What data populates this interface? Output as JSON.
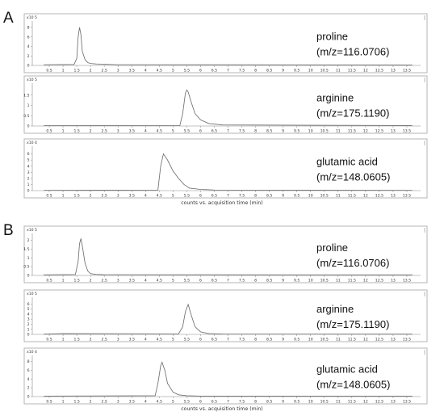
{
  "chart_data": [
    {
      "panel": "A",
      "type": "line",
      "xlabel": "counts vs. acquisition time (min)",
      "xlim": [
        0,
        14
      ],
      "x_ticks": [
        "0.5",
        "1",
        "1.5",
        "2",
        "2.5",
        "3",
        "3.5",
        "4",
        "4.5",
        "5",
        "5.5",
        "6",
        "6.5",
        "7",
        "7.5",
        "8",
        "8.5",
        "9",
        "9.5",
        "10",
        "10.5",
        "11",
        "11.5",
        "12",
        "12.5",
        "13",
        "13.5"
      ],
      "subplots": [
        {
          "compound": "proline",
          "mz": "(m/z=116.0706)",
          "exponent": "x10 5",
          "ylim": [
            0,
            9
          ],
          "y_ticks": [
            "0",
            "2",
            "4",
            "6",
            "8"
          ],
          "series": [
            {
              "x": [
                0.3,
                1.4,
                1.5,
                1.55,
                1.6,
                1.65,
                1.7,
                1.8,
                1.9,
                2.0,
                2.2,
                2.5,
                3.0,
                13.7
              ],
              "y": [
                0.15,
                0.2,
                1.5,
                6.0,
                8.0,
                6.5,
                3.0,
                1.2,
                0.6,
                0.4,
                0.3,
                0.25,
                0.15,
                0.1
              ]
            }
          ]
        },
        {
          "compound": "arginine",
          "mz": "(m/z=175.1190)",
          "exponent": "x10 5",
          "ylim": [
            0,
            2
          ],
          "y_ticks": [
            "0",
            "0.5",
            "1",
            "1.5"
          ],
          "series": [
            {
              "x": [
                0.3,
                5.25,
                5.35,
                5.45,
                5.5,
                5.55,
                5.65,
                5.8,
                6.0,
                6.3,
                6.8,
                13.7
              ],
              "y": [
                0.02,
                0.03,
                0.6,
                1.6,
                1.75,
                1.65,
                1.2,
                0.6,
                0.3,
                0.12,
                0.05,
                0.02
              ]
            }
          ]
        },
        {
          "compound": "glutamic acid",
          "mz": "(m/z=148.0605)",
          "exponent": "x10 4",
          "ylim": [
            0,
            7
          ],
          "y_ticks": [
            "0",
            "1",
            "2",
            "3",
            "4",
            "5",
            "6"
          ],
          "series": [
            {
              "x": [
                0.3,
                4.45,
                4.55,
                4.65,
                4.8,
                5.0,
                5.2,
                5.4,
                5.6,
                6.0,
                6.5,
                13.7
              ],
              "y": [
                0.05,
                0.1,
                4.0,
                6.0,
                5.0,
                3.2,
                2.0,
                1.0,
                0.4,
                0.2,
                0.1,
                0.05
              ]
            }
          ]
        }
      ]
    },
    {
      "panel": "B",
      "type": "line",
      "xlabel": "counts vs. acquisition time (min)",
      "xlim": [
        0,
        14
      ],
      "x_ticks": [
        "0.5",
        "1",
        "1.5",
        "2",
        "2.5",
        "3",
        "3.5",
        "4",
        "4.5",
        "5",
        "5.5",
        "6",
        "6.5",
        "7",
        "7.5",
        "8",
        "8.5",
        "9",
        "9.5",
        "10",
        "10.5",
        "11",
        "11.5",
        "12",
        "12.5",
        "13",
        "13.5"
      ],
      "subplots": [
        {
          "compound": "proline",
          "mz": "(m/z=116.0706)",
          "exponent": "x10 5",
          "ylim": [
            0,
            2.3
          ],
          "y_ticks": [
            "0",
            "0.5",
            "1",
            "1.5",
            "2"
          ],
          "series": [
            {
              "x": [
                0.3,
                1.45,
                1.55,
                1.6,
                1.65,
                1.7,
                1.8,
                1.9,
                2.0,
                2.2,
                2.5,
                13.7
              ],
              "y": [
                0.03,
                0.05,
                0.8,
                1.8,
                2.1,
                1.7,
                0.7,
                0.25,
                0.1,
                0.06,
                0.04,
                0.03
              ]
            }
          ]
        },
        {
          "compound": "arginine",
          "mz": "(m/z=175.1190)",
          "exponent": "x10 5",
          "ylim": [
            0,
            7
          ],
          "y_ticks": [
            "0",
            "1",
            "2",
            "3",
            "4",
            "5",
            "6"
          ],
          "series": [
            {
              "x": [
                0.3,
                1.0,
                5.2,
                5.35,
                5.45,
                5.55,
                5.65,
                5.8,
                6.0,
                6.3,
                6.8,
                13.7
              ],
              "y": [
                0.05,
                0.15,
                0.1,
                1.5,
                4.5,
                5.9,
                4.0,
                1.5,
                0.5,
                0.15,
                0.07,
                0.05
              ]
            }
          ]
        },
        {
          "compound": "glutamic acid",
          "mz": "(m/z=148.0605)",
          "exponent": "x10 4",
          "ylim": [
            0,
            9
          ],
          "y_ticks": [
            "0",
            "2",
            "4",
            "6",
            "8"
          ],
          "series": [
            {
              "x": [
                0.3,
                4.35,
                4.45,
                4.55,
                4.6,
                4.7,
                4.8,
                5.0,
                5.2,
                5.5,
                6.0,
                13.7
              ],
              "y": [
                0.1,
                0.2,
                3.0,
                7.0,
                7.8,
                6.0,
                3.0,
                1.0,
                0.4,
                0.2,
                0.1,
                0.1
              ]
            }
          ]
        }
      ]
    }
  ]
}
